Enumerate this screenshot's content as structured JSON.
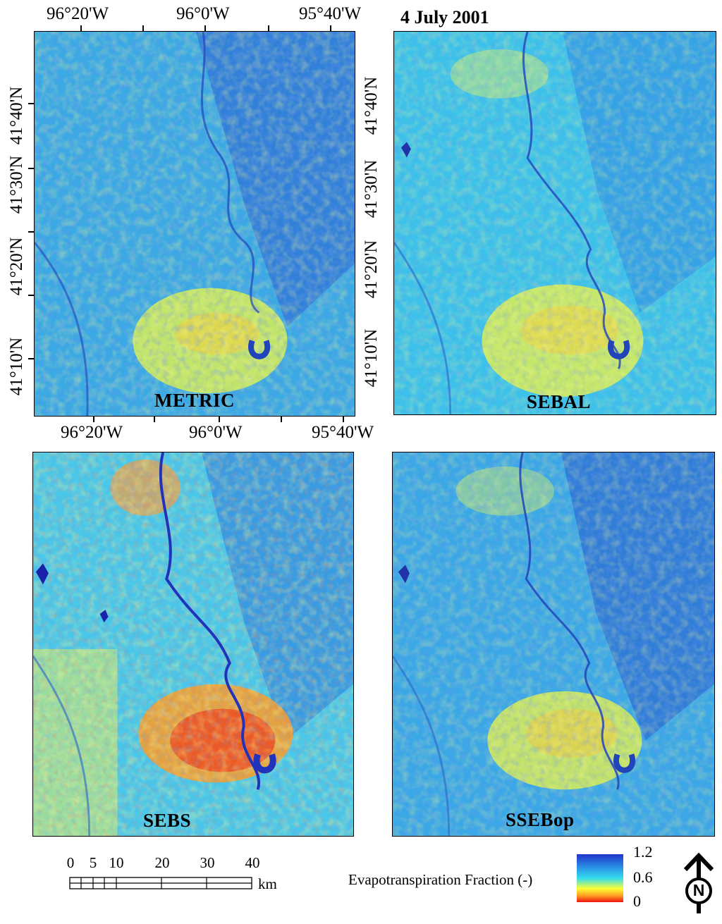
{
  "figure": {
    "date_title": "4 July 2001"
  },
  "panels": [
    {
      "id": "metric",
      "label": "METRIC"
    },
    {
      "id": "sebal",
      "label": "SEBAL"
    },
    {
      "id": "sebs",
      "label": "SEBS"
    },
    {
      "id": "ssebop",
      "label": "SSEBop"
    }
  ],
  "axes": {
    "longitude_top": [
      "96°20'W",
      "96°0'W",
      "95°40'W"
    ],
    "longitude_bottom": [
      "96°20'W",
      "96°0'W",
      "95°40'W"
    ],
    "latitude_left": [
      "41°40'N",
      "41°30'N",
      "41°20'N",
      "41°10'N"
    ],
    "latitude_right": [
      "41°40'N",
      "41°30'N",
      "41°20'N",
      "41°10'N"
    ]
  },
  "scale_bar": {
    "values": [
      "0",
      "5",
      "10",
      "20",
      "30",
      "40"
    ],
    "unit": "km"
  },
  "legend": {
    "title": "Evapotranspiration Fraction (-)",
    "max": "1.2",
    "mid": "0.6",
    "min": "0",
    "colors": {
      "high": "#2233cc",
      "mid": "#33ddee",
      "low_mid": "#ffff33",
      "low": "#ee1111"
    }
  },
  "north_arrow": {
    "label": "N"
  }
}
